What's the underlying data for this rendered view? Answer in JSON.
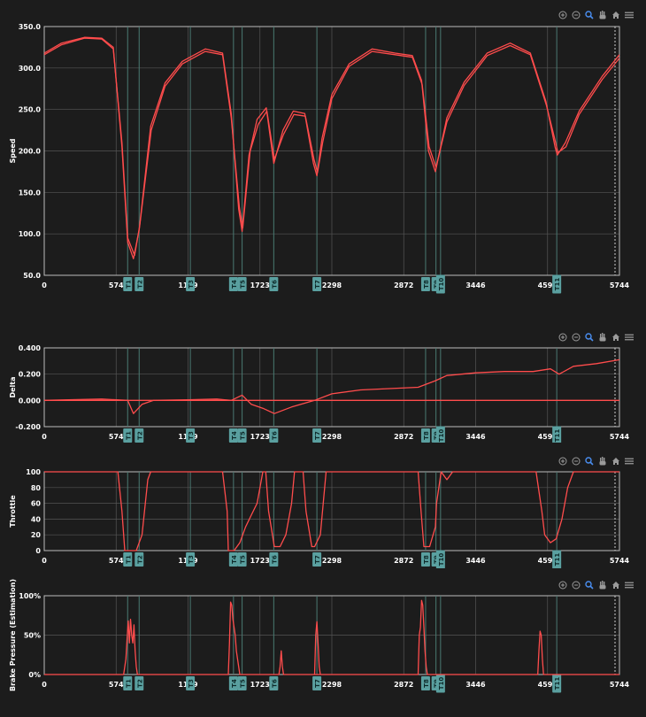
{
  "colors": {
    "background": "#1c1c1c",
    "plot_border": "#bdbdbd",
    "grid": "#555555",
    "turn_line": "#4a7a72",
    "turn_tag_bg": "#5aa0a0",
    "turn_tag_text": "#0e2a2a",
    "trace": "#ff4c4c",
    "label": "#ffffff",
    "marker": "#cccccc"
  },
  "toolbar": [
    "zoom-in-icon",
    "zoom-out-icon",
    "magnifier-icon",
    "pan-hand-icon",
    "home-icon",
    "menu-icon"
  ],
  "x_ticks": [
    "0",
    "574",
    "1149",
    "1723",
    "2298",
    "2872",
    "3446",
    "4595",
    "5744"
  ],
  "turns": [
    {
      "x": 1450,
      "label": "T1"
    },
    {
      "x": 1650,
      "label": "T2"
    },
    {
      "x": 2540,
      "label": "T3"
    },
    {
      "x": 3290,
      "label": "T4"
    },
    {
      "x": 3440,
      "label": "T5"
    },
    {
      "x": 3990,
      "label": "T6"
    },
    {
      "x": 4740,
      "label": "T7"
    },
    {
      "x": 6630,
      "label": "T8"
    },
    {
      "x": 6810,
      "label": "T9"
    },
    {
      "x": 6890,
      "label": "T10"
    },
    {
      "x": 8910,
      "label": "T11"
    }
  ],
  "chart_data": [
    {
      "type": "line",
      "ylabel": "Speed",
      "ylim": [
        50,
        350
      ],
      "y_ticks": [
        "350.0",
        "300.0",
        "250.0",
        "200.0",
        "150.0",
        "100.0",
        "50.0"
      ],
      "series": [
        {
          "x": [
            0,
            300,
            700,
            1000,
            1200,
            1350,
            1450,
            1550,
            1650,
            1850,
            2100,
            2400,
            2800,
            3100,
            3250,
            3380,
            3440,
            3560,
            3700,
            3860,
            3990,
            4150,
            4330,
            4530,
            4680,
            4740,
            4830,
            5000,
            5300,
            5700,
            6100,
            6400,
            6560,
            6680,
            6800,
            7000,
            7300,
            7700,
            8100,
            8450,
            8720,
            8880,
            8920,
            9060,
            9300,
            9700,
            10000
          ],
          "y": [
            318,
            330,
            337,
            336,
            325,
            205,
            90,
            70,
            105,
            230,
            282,
            308,
            323,
            318,
            245,
            130,
            103,
            195,
            238,
            252,
            185,
            225,
            248,
            245,
            185,
            170,
            215,
            268,
            305,
            323,
            318,
            315,
            285,
            200,
            175,
            240,
            283,
            318,
            330,
            318,
            260,
            205,
            195,
            210,
            248,
            290,
            316
          ]
        },
        {
          "x": [
            0,
            300,
            700,
            1000,
            1200,
            1350,
            1450,
            1570,
            1660,
            1860,
            2100,
            2400,
            2800,
            3100,
            3250,
            3390,
            3450,
            3580,
            3720,
            3870,
            4000,
            4160,
            4340,
            4540,
            4690,
            4750,
            4840,
            5000,
            5300,
            5700,
            6100,
            6400,
            6570,
            6690,
            6810,
            7000,
            7300,
            7700,
            8100,
            8450,
            8730,
            8890,
            8930,
            9070,
            9300,
            9700,
            10000
          ],
          "y": [
            316,
            328,
            336,
            335,
            323,
            210,
            95,
            74,
            110,
            225,
            278,
            305,
            320,
            316,
            240,
            133,
            107,
            200,
            232,
            248,
            190,
            220,
            244,
            242,
            190,
            174,
            210,
            263,
            302,
            320,
            316,
            313,
            280,
            205,
            180,
            235,
            279,
            315,
            327,
            316,
            255,
            210,
            198,
            205,
            244,
            286,
            312
          ]
        }
      ]
    },
    {
      "type": "line",
      "ylabel": "Delta",
      "ylim": [
        -0.2,
        0.4
      ],
      "y_ticks": [
        "0.400",
        "0.200",
        "0.000",
        "-0.200"
      ],
      "series": [
        {
          "x": [
            0,
            1000,
            1450,
            1550,
            1700,
            1900,
            2500,
            3000,
            3250,
            3440,
            3600,
            3800,
            4000,
            4300,
            4700,
            5000,
            5500,
            6000,
            6500,
            6800,
            7000,
            7500,
            8000,
            8500,
            8800,
            8950,
            9200,
            9600,
            10000
          ],
          "y": [
            0.0,
            0.01,
            0.0,
            -0.1,
            -0.03,
            0.0,
            0.005,
            0.01,
            0.0,
            0.04,
            -0.03,
            -0.06,
            -0.1,
            -0.05,
            0.0,
            0.05,
            0.08,
            0.09,
            0.1,
            0.15,
            0.19,
            0.21,
            0.22,
            0.22,
            0.24,
            0.2,
            0.26,
            0.28,
            0.31
          ]
        },
        {
          "x": [
            0,
            10000
          ],
          "y": [
            0,
            0
          ]
        }
      ]
    },
    {
      "type": "line",
      "ylabel": "Throttle",
      "ylim": [
        0,
        100
      ],
      "y_ticks": [
        "100",
        "80",
        "60",
        "40",
        "20",
        "0"
      ],
      "series": [
        {
          "x": [
            0,
            1280,
            1350,
            1400,
            1500,
            1600,
            1700,
            1800,
            1850,
            3100,
            3180,
            3200,
            3300,
            3400,
            3500,
            3600,
            3700,
            3750,
            3800,
            3850,
            3900,
            4000,
            4100,
            4200,
            4300,
            4350,
            4500,
            4550,
            4650,
            4700,
            4800,
            4900,
            5000,
            6500,
            6550,
            6600,
            6700,
            6800,
            6820,
            6900,
            7000,
            7100,
            7200,
            8550,
            8650,
            8700,
            8800,
            8900,
            9000,
            9100,
            9200,
            10000
          ],
          "y": [
            100,
            100,
            50,
            0,
            0,
            0,
            20,
            90,
            100,
            100,
            50,
            0,
            0,
            10,
            30,
            45,
            60,
            80,
            100,
            100,
            50,
            5,
            5,
            20,
            60,
            100,
            100,
            50,
            5,
            5,
            20,
            100,
            100,
            100,
            50,
            5,
            5,
            30,
            60,
            100,
            90,
            100,
            100,
            100,
            50,
            20,
            10,
            15,
            40,
            80,
            100,
            100
          ]
        }
      ]
    },
    {
      "type": "line",
      "ylabel": "Brake Pressure (Estimation)",
      "ylim": [
        0,
        100
      ],
      "y_ticks": [
        "100%",
        "50%",
        "0%"
      ],
      "series": [
        {
          "x": [
            0,
            1380,
            1420,
            1440,
            1460,
            1480,
            1500,
            1510,
            1520,
            1540,
            1560,
            1580,
            1600,
            1620,
            1640,
            1660,
            1680,
            3200,
            3220,
            3240,
            3260,
            3280,
            3300,
            3320,
            3340,
            3360,
            3380,
            3400,
            3420,
            3440,
            3460,
            3480,
            3500,
            4080,
            4100,
            4120,
            4140,
            4160,
            4180,
            4200,
            4220,
            4240,
            4260,
            4280,
            4300,
            4330,
            4350,
            4370,
            4380,
            4390,
            4400,
            4420,
            4440,
            4460,
            4480,
            4500,
            4520,
            4540,
            4560,
            4580,
            4600,
            4620,
            4640,
            4660,
            4680,
            4700,
            4720,
            4740,
            4760,
            4780,
            4800,
            4820,
            4840,
            4860,
            4880,
            4900,
            4920,
            4940,
            4960,
            4980,
            5000,
            6500,
            6520,
            6540,
            6560,
            6580,
            6600,
            6620,
            6640,
            6660,
            6680,
            6700,
            6720,
            6740,
            8580,
            8600,
            8620,
            8640,
            8660,
            8680,
            8700,
            10000
          ],
          "y": [
            0,
            0,
            20,
            45,
            68,
            40,
            70,
            62,
            50,
            40,
            63,
            30,
            10,
            0,
            0,
            0,
            0,
            0,
            40,
            92,
            88,
            70,
            60,
            50,
            30,
            20,
            10,
            0,
            0,
            0,
            0,
            0,
            0,
            0,
            10,
            30,
            10,
            0,
            0,
            0,
            0,
            0,
            0,
            0,
            0,
            0,
            0,
            0,
            0,
            0,
            0,
            0,
            0,
            0,
            0,
            0,
            0,
            0,
            0,
            0,
            0,
            0,
            0,
            0,
            0,
            0,
            0,
            0,
            0,
            0,
            0,
            0,
            0,
            0,
            0,
            0,
            0,
            0,
            0,
            0,
            0,
            0,
            50,
            60,
            94,
            88,
            60,
            30,
            10,
            0,
            0,
            0,
            0,
            0,
            0,
            30,
            55,
            50,
            20,
            0,
            0,
            0
          ]
        },
        {
          "x": [
            4700,
            4720,
            4740,
            4760,
            4780,
            4800
          ],
          "y": [
            0,
            50,
            67,
            40,
            10,
            0
          ]
        }
      ]
    }
  ]
}
